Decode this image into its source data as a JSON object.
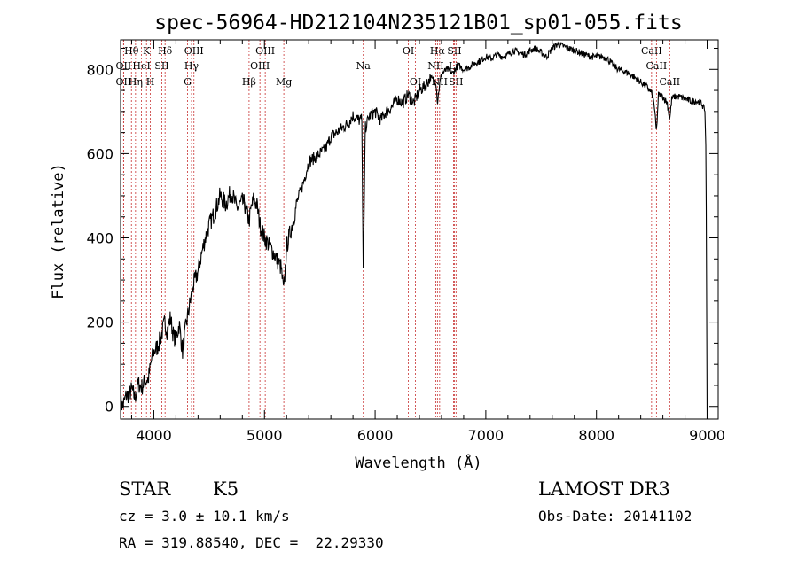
{
  "chart_data": {
    "type": "line",
    "title": "spec-56964-HD212104N235121B01_sp01-055.fits",
    "xlabel": "Wavelength (Å)",
    "ylabel": "Flux (relative)",
    "xlim": [
      3700,
      9100
    ],
    "ylim": [
      -30,
      870
    ],
    "x_ticks": [
      4000,
      5000,
      6000,
      7000,
      8000,
      9000
    ],
    "y_ticks": [
      0,
      200,
      400,
      600,
      800
    ],
    "grid": false,
    "series": [
      {
        "x": [
          3700,
          3720,
          3750,
          3780,
          3800,
          3830,
          3860,
          3890,
          3920,
          3950,
          3980,
          4000,
          4030,
          4060,
          4100,
          4120,
          4150,
          4180,
          4200,
          4230,
          4260,
          4290,
          4300,
          4330,
          4360,
          4400,
          4430,
          4460,
          4500,
          4550,
          4600,
          4650,
          4700,
          4750,
          4800,
          4820,
          4861,
          4880,
          4900,
          4930,
          4960,
          5000,
          5050,
          5100,
          5150,
          5175,
          5200,
          5250,
          5300,
          5350,
          5400,
          5450,
          5500,
          5550,
          5600,
          5650,
          5700,
          5750,
          5800,
          5850,
          5880,
          5893,
          5910,
          5950,
          6000,
          6050,
          6100,
          6150,
          6200,
          6250,
          6300,
          6350,
          6400,
          6450,
          6500,
          6550,
          6563,
          6580,
          6600,
          6650,
          6700,
          6750,
          6800,
          6850,
          6900,
          6950,
          7000,
          7050,
          7100,
          7150,
          7200,
          7250,
          7300,
          7350,
          7400,
          7450,
          7500,
          7550,
          7600,
          7650,
          7700,
          7750,
          7800,
          7850,
          7900,
          7950,
          8000,
          8050,
          8100,
          8150,
          8200,
          8250,
          8300,
          8350,
          8400,
          8450,
          8498,
          8520,
          8542,
          8560,
          8600,
          8640,
          8662,
          8680,
          8700,
          8750,
          8800,
          8850,
          8900,
          8950,
          8980,
          8990,
          9000
        ],
        "y": [
          10,
          0,
          25,
          30,
          40,
          20,
          55,
          45,
          60,
          65,
          110,
          130,
          140,
          160,
          200,
          180,
          210,
          165,
          160,
          195,
          130,
          190,
          205,
          250,
          290,
          320,
          360,
          395,
          430,
          460,
          500,
          480,
          510,
          470,
          485,
          480,
          440,
          470,
          490,
          480,
          430,
          400,
          380,
          355,
          330,
          270,
          380,
          430,
          490,
          530,
          580,
          590,
          600,
          610,
          640,
          650,
          660,
          670,
          690,
          680,
          680,
          300,
          660,
          690,
          700,
          680,
          700,
          710,
          730,
          720,
          740,
          720,
          750,
          760,
          780,
          770,
          720,
          760,
          790,
          800,
          790,
          810,
          800,
          805,
          815,
          820,
          830,
          825,
          835,
          830,
          835,
          845,
          840,
          835,
          845,
          850,
          840,
          830,
          850,
          860,
          855,
          850,
          845,
          840,
          835,
          830,
          830,
          830,
          825,
          810,
          800,
          795,
          790,
          780,
          770,
          760,
          745,
          720,
          650,
          740,
          735,
          720,
          680,
          730,
          735,
          735,
          730,
          725,
          725,
          720,
          700,
          600,
          -30
        ]
      }
    ],
    "line_markers": [
      {
        "label": "Hθ",
        "x": 3798,
        "row": 1
      },
      {
        "label": "OII",
        "x": 3727,
        "row": 2
      },
      {
        "label": "OII",
        "x": 3727,
        "row": 3
      },
      {
        "label": "K",
        "x": 3934,
        "row": 1
      },
      {
        "label": "HeI",
        "x": 3889,
        "row": 2
      },
      {
        "label": "Hη",
        "x": 3835,
        "row": 3
      },
      {
        "label": "Hδ",
        "x": 4102,
        "row": 1
      },
      {
        "label": "SII",
        "x": 4072,
        "row": 2
      },
      {
        "label": "H",
        "x": 3969,
        "row": 3
      },
      {
        "label": "OIII",
        "x": 4363,
        "row": 1
      },
      {
        "label": "Hγ",
        "x": 4341,
        "row": 2
      },
      {
        "label": "G",
        "x": 4305,
        "row": 3
      },
      {
        "label": "OIII",
        "x": 5007,
        "row": 1
      },
      {
        "label": "OIII",
        "x": 4959,
        "row": 2
      },
      {
        "label": "Hβ",
        "x": 4861,
        "row": 3
      },
      {
        "label": "Mg",
        "x": 5175,
        "row": 3
      },
      {
        "label": "Na",
        "x": 5893,
        "row": 2
      },
      {
        "label": "OI",
        "x": 6300,
        "row": 1
      },
      {
        "label": "OI",
        "x": 6364,
        "row": 3
      },
      {
        "label": "Hα",
        "x": 6563,
        "row": 1
      },
      {
        "label": "SII",
        "x": 6716,
        "row": 1
      },
      {
        "label": "NII",
        "x": 6548,
        "row": 2
      },
      {
        "label": "Li",
        "x": 6708,
        "row": 2
      },
      {
        "label": "NII",
        "x": 6583,
        "row": 3
      },
      {
        "label": "SII",
        "x": 6731,
        "row": 3
      },
      {
        "label": "CaII",
        "x": 8498,
        "row": 1
      },
      {
        "label": "CaII",
        "x": 8542,
        "row": 2
      },
      {
        "label": "CaII",
        "x": 8662,
        "row": 3
      }
    ],
    "line_marker_color": "#c83232"
  },
  "footer": {
    "object_type": "STAR",
    "subclass": "K5",
    "survey": "LAMOST DR3",
    "cz": "cz = 3.0 ± 10.1 km/s",
    "obs_date": "Obs-Date: 20141102",
    "coords": "RA = 319.88540, DEC =  22.29330"
  }
}
